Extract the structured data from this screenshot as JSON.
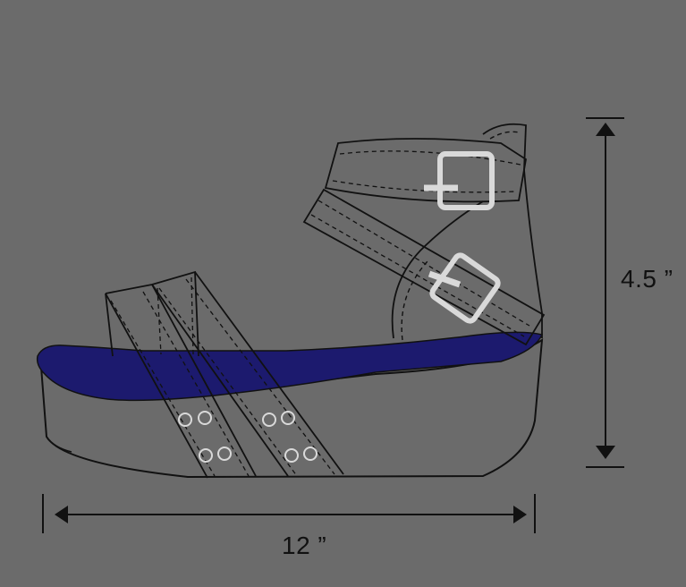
{
  "dimensions": {
    "height_label": "4.5 ”",
    "width_label": "12 ”"
  },
  "colors": {
    "background": "#6b6b6b",
    "outline": "#111111",
    "footbed": "#1c1a6e",
    "buckle": "#d9d9d9",
    "eyelet": "#d9d9d9"
  },
  "parts": [
    "platform-sole",
    "footbed",
    "toe-straps",
    "ankle-straps",
    "buckles",
    "eyelets",
    "heel-counter"
  ]
}
